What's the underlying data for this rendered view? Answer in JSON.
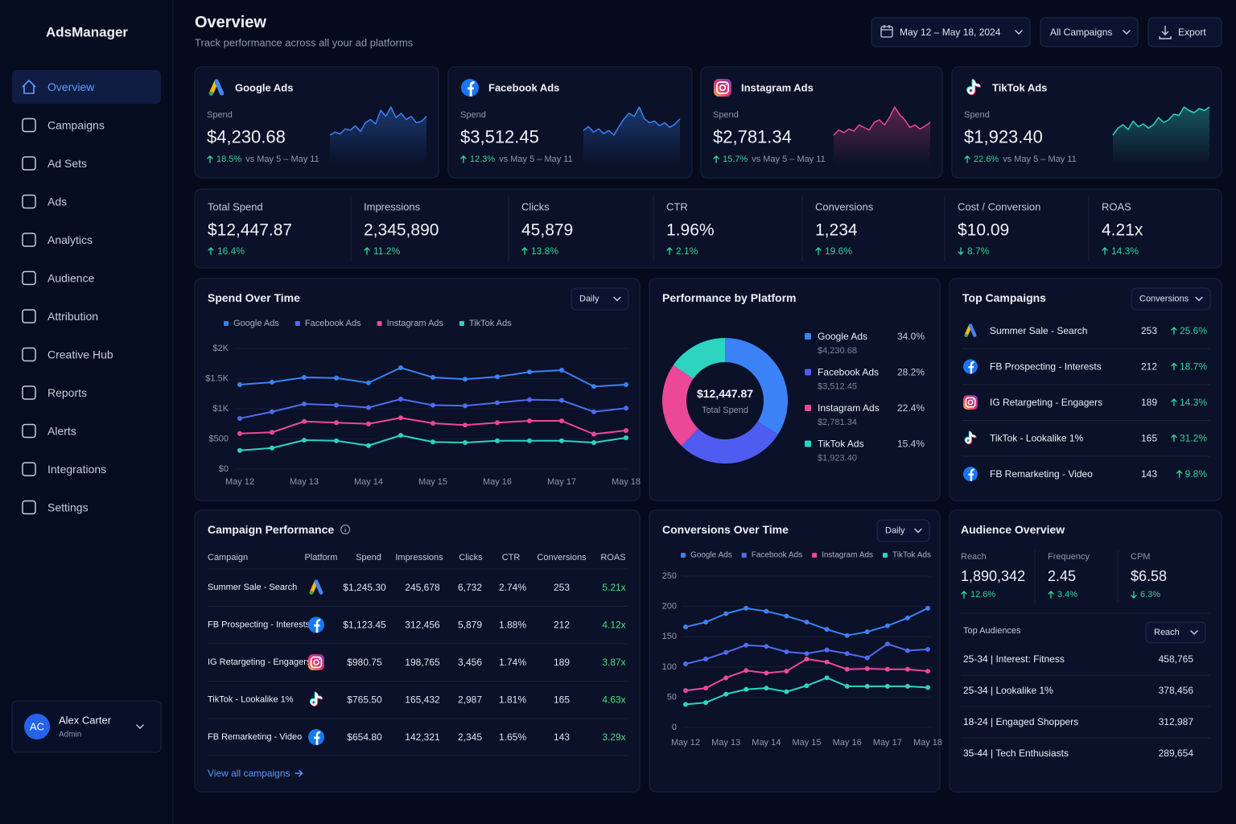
{
  "sidebar": {
    "brand": "AdsManager",
    "nav": [
      "Overview",
      "Campaigns",
      "Ad Sets",
      "Ads",
      "Analytics",
      "Audience",
      "Attribution",
      "Creative Hub",
      "Reports",
      "Alerts",
      "Integrations",
      "Settings"
    ],
    "user": {
      "initials": "AC",
      "name": "Alex Carter",
      "role": "Admin"
    }
  },
  "header": {
    "title": "Overview",
    "subtitle": "Track performance across all your ad platforms",
    "date_range": "May 12 – May 18, 2024",
    "campaign_filter": "All Campaigns",
    "export": "Export"
  },
  "platform_cards": [
    {
      "icon": "google",
      "name": "Google Ads",
      "metric": "Spend",
      "value": "$4,230.68",
      "change": "18.5%",
      "direction": "up",
      "comparison": "vs May 5 – May 11",
      "color": "#3b82f6",
      "sparkline": [
        30,
        35,
        32,
        40,
        38,
        45,
        36,
        50,
        55,
        48,
        70,
        60,
        75,
        58,
        65,
        55,
        60,
        50,
        52,
        60
      ]
    },
    {
      "icon": "facebook",
      "name": "Facebook Ads",
      "metric": "Spend",
      "value": "$3,512.45",
      "change": "12.3%",
      "direction": "up",
      "comparison": "vs May 5 – May 11",
      "color": "#3b82f6",
      "sparkline": [
        40,
        45,
        38,
        42,
        36,
        40,
        34,
        45,
        55,
        62,
        58,
        70,
        55,
        50,
        52,
        46,
        50,
        44,
        48,
        55
      ]
    },
    {
      "icon": "instagram",
      "name": "Instagram Ads",
      "metric": "Spend",
      "value": "$2,781.34",
      "change": "15.7%",
      "direction": "up",
      "comparison": "vs May 5 – May 11",
      "color": "#ec4899",
      "sparkline": [
        30,
        40,
        35,
        42,
        38,
        50,
        45,
        40,
        55,
        60,
        50,
        65,
        85,
        70,
        60,
        45,
        50,
        42,
        48,
        55
      ]
    },
    {
      "icon": "tiktok",
      "name": "TikTok Ads",
      "metric": "Spend",
      "value": "$1,923.40",
      "change": "22.6%",
      "direction": "up",
      "comparison": "vs May 5 – May 11",
      "color": "#2dd4bf",
      "sparkline": [
        30,
        40,
        45,
        38,
        50,
        42,
        46,
        40,
        45,
        55,
        48,
        52,
        60,
        58,
        70,
        65,
        62,
        68,
        65,
        70
      ]
    }
  ],
  "kpis": [
    {
      "label": "Total Spend",
      "value": "$12,447.87",
      "change": "16.4%",
      "direction": "up"
    },
    {
      "label": "Impressions",
      "value": "2,345,890",
      "change": "11.2%",
      "direction": "up"
    },
    {
      "label": "Clicks",
      "value": "45,879",
      "change": "13.8%",
      "direction": "up"
    },
    {
      "label": "CTR",
      "value": "1.96%",
      "change": "2.1%",
      "direction": "up"
    },
    {
      "label": "Conversions",
      "value": "1,234",
      "change": "19.6%",
      "direction": "up"
    },
    {
      "label": "Cost / Conversion",
      "value": "$10.09",
      "change": "8.7%",
      "direction": "down"
    },
    {
      "label": "ROAS",
      "value": "4.21x",
      "change": "14.3%",
      "direction": "up"
    }
  ],
  "spend_over_time": {
    "type": "line",
    "title": "Spend Over Time",
    "interval": "Daily",
    "categories": [
      "May 12",
      null,
      "May 13",
      null,
      "May 14",
      null,
      "May 15",
      null,
      "May 16",
      null,
      "May 17",
      null,
      "May 18"
    ],
    "series": [
      {
        "name": "Google Ads",
        "color": "#3b82f6",
        "values": [
          1400,
          1440,
          1520,
          1510,
          1430,
          1680,
          1520,
          1490,
          1530,
          1610,
          1640,
          1370,
          1400
        ]
      },
      {
        "name": "Facebook Ads",
        "color": "#4f6bed",
        "values": [
          840,
          950,
          1080,
          1060,
          1020,
          1160,
          1060,
          1050,
          1100,
          1150,
          1140,
          950,
          1010
        ]
      },
      {
        "name": "Instagram Ads",
        "color": "#ec4899",
        "values": [
          590,
          610,
          790,
          770,
          750,
          850,
          760,
          730,
          770,
          800,
          800,
          580,
          640
        ]
      },
      {
        "name": "TikTok Ads",
        "color": "#2dd4bf",
        "values": [
          310,
          350,
          480,
          470,
          390,
          560,
          450,
          440,
          470,
          470,
          470,
          440,
          520
        ]
      }
    ],
    "ylim": [
      0,
      2000
    ],
    "yticks": [
      {
        "value": 0,
        "label": "$0"
      },
      {
        "value": 500,
        "label": "$500"
      },
      {
        "value": 1000,
        "label": "$1K"
      },
      {
        "value": 1500,
        "label": "$1.5K"
      },
      {
        "value": 2000,
        "label": "$2K"
      }
    ],
    "grid": true
  },
  "performance_by_platform": {
    "type": "pie",
    "title": "Performance by Platform",
    "total": "$12,447.87",
    "total_label": "Total Spend",
    "categories": [
      "Google Ads",
      "Facebook Ads",
      "Instagram Ads",
      "TikTok Ads"
    ],
    "values": [
      34.0,
      28.2,
      22.4,
      15.4
    ],
    "value_labels": [
      "34.0%",
      "28.2%",
      "22.4%",
      "15.4%"
    ],
    "spend": [
      "$4,230.68",
      "$3,512.45",
      "$2,781.34",
      "$1,923.40"
    ],
    "colors": [
      "#3b82f6",
      "#4f5cf0",
      "#ec4899",
      "#2dd4bf"
    ]
  },
  "top_campaigns": {
    "title": "Top Campaigns",
    "metric": "Conversions",
    "rows": [
      {
        "icon": "google",
        "name": "Summer Sale - Search",
        "value": 253,
        "change": "25.6%"
      },
      {
        "icon": "facebook",
        "name": "FB Prospecting - Interests",
        "value": 212,
        "change": "18.7%"
      },
      {
        "icon": "instagram",
        "name": "IG Retargeting - Engagers",
        "value": 189,
        "change": "14.3%"
      },
      {
        "icon": "tiktok",
        "name": "TikTok - Lookalike 1%",
        "value": 165,
        "change": "31.2%"
      },
      {
        "icon": "facebook",
        "name": "FB Remarketing - Video",
        "value": 143,
        "change": "9.8%"
      }
    ]
  },
  "campaign_performance": {
    "title": "Campaign Performance",
    "columns": [
      "Campaign",
      "Platform",
      "Spend",
      "Impressions",
      "Clicks",
      "CTR",
      "Conversions",
      "ROAS"
    ],
    "rows": [
      {
        "name": "Summer Sale - Search",
        "platform": "google",
        "spend": "$1,245.30",
        "impressions": "245,678",
        "clicks": "6,732",
        "ctr": "2.74%",
        "conversions": "253",
        "roas": "5.21x"
      },
      {
        "name": "FB Prospecting - Interests",
        "platform": "facebook",
        "spend": "$1,123.45",
        "impressions": "312,456",
        "clicks": "5,879",
        "ctr": "1.88%",
        "conversions": "212",
        "roas": "4.12x"
      },
      {
        "name": "IG Retargeting - Engagers",
        "platform": "instagram",
        "spend": "$980.75",
        "impressions": "198,765",
        "clicks": "3,456",
        "ctr": "1.74%",
        "conversions": "189",
        "roas": "3.87x"
      },
      {
        "name": "TikTok - Lookalike 1%",
        "platform": "tiktok",
        "spend": "$765.50",
        "impressions": "165,432",
        "clicks": "2,987",
        "ctr": "1.81%",
        "conversions": "165",
        "roas": "4.63x"
      },
      {
        "name": "FB Remarketing - Video",
        "platform": "facebook",
        "spend": "$654.80",
        "impressions": "142,321",
        "clicks": "2,345",
        "ctr": "1.65%",
        "conversions": "143",
        "roas": "3.29x"
      }
    ],
    "link": "View all campaigns"
  },
  "conversions_over_time": {
    "type": "line",
    "title": "Conversions Over Time",
    "interval": "Daily",
    "categories": [
      "May 12",
      null,
      "May 13",
      null,
      "May 14",
      null,
      "May 15",
      null,
      "May 16",
      null,
      "May 17",
      null,
      "May 18"
    ],
    "series": [
      {
        "name": "Google Ads",
        "color": "#3b82f6",
        "values": [
          166,
          174,
          188,
          197,
          192,
          184,
          174,
          162,
          152,
          158,
          168,
          181,
          197
        ]
      },
      {
        "name": "Facebook Ads",
        "color": "#4f6bed",
        "values": [
          105,
          113,
          124,
          136,
          134,
          125,
          122,
          128,
          122,
          115,
          138,
          127,
          129
        ]
      },
      {
        "name": "Instagram Ads",
        "color": "#ec4899",
        "values": [
          61,
          65,
          82,
          94,
          90,
          93,
          113,
          108,
          96,
          97,
          96,
          96,
          93
        ]
      },
      {
        "name": "TikTok Ads",
        "color": "#2dd4bf",
        "values": [
          38,
          41,
          55,
          63,
          65,
          59,
          69,
          82,
          68,
          68,
          68,
          68,
          66
        ]
      }
    ],
    "ylim": [
      0,
      250
    ],
    "yticks": [
      0,
      50,
      100,
      150,
      200,
      250
    ],
    "grid": true
  },
  "audience_overview": {
    "title": "Audience Overview",
    "metrics": [
      {
        "label": "Reach",
        "value": "1,890,342",
        "change": "12.6%",
        "direction": "up"
      },
      {
        "label": "Frequency",
        "value": "2.45",
        "change": "3.4%",
        "direction": "up"
      },
      {
        "label": "CPM",
        "value": "$6.58",
        "change": "6.3%",
        "direction": "down"
      }
    ],
    "top_title": "Top Audiences",
    "sort": "Reach",
    "rows": [
      {
        "name": "25-34 | Interest: Fitness",
        "value": "458,765"
      },
      {
        "name": "25-34 | Lookalike 1%",
        "value": "378,456"
      },
      {
        "name": "18-24 | Engaged Shoppers",
        "value": "312,987"
      },
      {
        "name": "35-44 | Tech Enthusiasts",
        "value": "289,654"
      }
    ]
  }
}
